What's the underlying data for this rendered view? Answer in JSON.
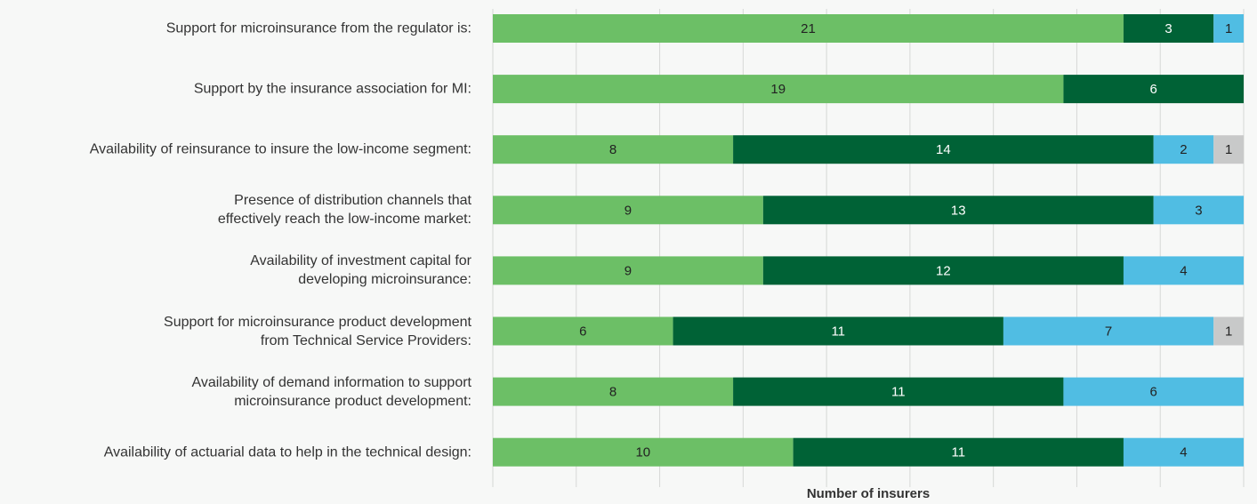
{
  "chart_data": {
    "type": "stacked-barh",
    "x_label": "Number of insurers",
    "categories": [
      "Support for microinsurance from the regulator is:",
      "Support by the insurance association for MI:",
      "Availability of reinsurance to insure the low-income segment:",
      "Presence of distribution channels that\neffectively reach the low-income market:",
      "Availability of investment capital for\ndeveloping microinsurance:",
      "Support for microinsurance product development\nfrom Technical Service Providers:",
      "Availability of demand information to support\nmicroinsurance product development:",
      "Availability of actuarial data to help in the technical design:"
    ],
    "series": [
      {
        "color": "#6cbf66",
        "label_color": "#222222",
        "values": [
          21,
          19,
          8,
          9,
          9,
          6,
          8,
          10
        ]
      },
      {
        "color": "#006236",
        "label_color": "#ffffff",
        "values": [
          3,
          6,
          14,
          13,
          12,
          11,
          11,
          11
        ]
      },
      {
        "color": "#50bde3",
        "label_color": "#222222",
        "values": [
          1,
          null,
          2,
          3,
          4,
          7,
          6,
          4
        ]
      },
      {
        "color": "#c8c9c9",
        "label_color": "#222222",
        "values": [
          null,
          null,
          1,
          null,
          null,
          1,
          null,
          null
        ]
      }
    ],
    "xlim": [
      0,
      25
    ],
    "grid": true
  }
}
